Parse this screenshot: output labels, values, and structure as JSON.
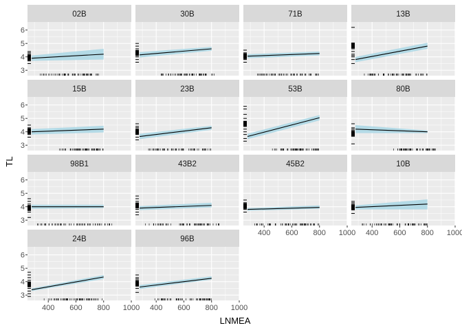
{
  "chart_data": {
    "type": "line",
    "facet_layout": "4 columns x 4 rows (row-wise)",
    "xlabel": "LNMEA",
    "ylabel": "TL",
    "xlim": [
      250,
      1000
    ],
    "ylim": [
      2.6,
      6.6
    ],
    "x_ticks": [
      400,
      600,
      800,
      1000
    ],
    "y_ticks": [
      3,
      4,
      5,
      6
    ],
    "grid": true,
    "colors": {
      "panel_bg": "#ebebeb",
      "grid": "#ffffff",
      "strip_bg": "#d9d9d9",
      "ribbon": "#add8e6",
      "line": "#000000",
      "rug": "#000000"
    },
    "panels": [
      {
        "label": "02B",
        "x": [
          280,
          800
        ],
        "y": [
          3.9,
          4.2
        ],
        "ribbon_lo": [
          3.7,
          3.8
        ],
        "ribbon_hi": [
          4.1,
          4.6
        ],
        "rug_x_range": [
          320,
          800
        ],
        "rug_y": [
          3.5,
          3.7,
          3.8,
          3.9,
          4.0,
          4.1,
          4.2,
          4.3,
          4.4
        ]
      },
      {
        "label": "30B",
        "x": [
          280,
          800
        ],
        "y": [
          4.15,
          4.6
        ],
        "ribbon_lo": [
          3.95,
          4.45
        ],
        "ribbon_hi": [
          4.35,
          4.75
        ],
        "rug_x_range": [
          420,
          820
        ],
        "rug_y": [
          3.6,
          3.8,
          4.0,
          4.1,
          4.2,
          4.3,
          4.4,
          4.6,
          4.8,
          5.0
        ]
      },
      {
        "label": "71B",
        "x": [
          280,
          800
        ],
        "y": [
          4.05,
          4.25
        ],
        "ribbon_lo": [
          3.9,
          4.1
        ],
        "ribbon_hi": [
          4.2,
          4.4
        ],
        "rug_x_range": [
          340,
          800
        ],
        "rug_y": [
          3.6,
          3.8,
          4.0,
          4.1,
          4.2,
          4.3,
          4.5
        ]
      },
      {
        "label": "13B",
        "x": [
          280,
          800
        ],
        "y": [
          3.8,
          4.8
        ],
        "ribbon_lo": [
          3.6,
          4.6
        ],
        "ribbon_hi": [
          4.0,
          5.05
        ],
        "rug_x_range": [
          340,
          800
        ],
        "rug_y": [
          3.5,
          3.8,
          4.0,
          4.1,
          4.2,
          4.4,
          4.6,
          6.2
        ]
      },
      {
        "label": "15B",
        "x": [
          280,
          800
        ],
        "y": [
          4.0,
          4.2
        ],
        "ribbon_lo": [
          3.8,
          3.95
        ],
        "ribbon_hi": [
          4.2,
          4.45
        ],
        "rug_x_range": [
          470,
          800
        ],
        "rug_y": [
          3.6,
          3.8,
          3.9,
          4.0,
          4.1,
          4.2,
          4.3,
          4.5
        ]
      },
      {
        "label": "23B",
        "x": [
          280,
          800
        ],
        "y": [
          3.65,
          4.3
        ],
        "ribbon_lo": [
          3.45,
          4.15
        ],
        "ribbon_hi": [
          3.85,
          4.45
        ],
        "rug_x_range": [
          340,
          800
        ],
        "rug_y": [
          3.4,
          3.6,
          3.8,
          4.0,
          4.1,
          4.2,
          4.3,
          4.4,
          4.6
        ]
      },
      {
        "label": "53B",
        "x": [
          280,
          800
        ],
        "y": [
          3.65,
          5.05
        ],
        "ribbon_lo": [
          3.45,
          4.85
        ],
        "ribbon_hi": [
          3.85,
          5.25
        ],
        "rug_x_range": [
          440,
          800
        ],
        "rug_y": [
          3.3,
          3.5,
          3.8,
          4.0,
          4.2,
          4.4,
          4.6,
          5.0,
          5.3,
          5.7,
          5.9
        ]
      },
      {
        "label": "80B",
        "x": [
          280,
          800
        ],
        "y": [
          4.2,
          4.0
        ],
        "ribbon_lo": [
          3.9,
          3.9
        ],
        "ribbon_hi": [
          4.5,
          4.1
        ],
        "rug_x_range": [
          550,
          860
        ],
        "rug_y": [
          3.1,
          3.7,
          3.9,
          4.0,
          4.1,
          4.2,
          4.3,
          4.6
        ]
      },
      {
        "label": "98B1",
        "x": [
          280,
          800
        ],
        "y": [
          4.0,
          4.0
        ],
        "ribbon_lo": [
          3.85,
          3.9
        ],
        "ribbon_hi": [
          4.15,
          4.15
        ],
        "rug_x_range": [
          320,
          860
        ],
        "rug_y": [
          3.2,
          3.6,
          3.8,
          3.9,
          4.0,
          4.1,
          4.2,
          4.4,
          4.6
        ]
      },
      {
        "label": "43B2",
        "x": [
          280,
          800
        ],
        "y": [
          3.9,
          4.1
        ],
        "ribbon_lo": [
          3.75,
          3.95
        ],
        "ribbon_hi": [
          4.05,
          4.3
        ],
        "rug_x_range": [
          320,
          860
        ],
        "rug_y": [
          3.4,
          3.6,
          3.8,
          3.9,
          4.0,
          4.1,
          4.2,
          4.4,
          4.6,
          4.8
        ]
      },
      {
        "label": "45B2",
        "x": [
          280,
          800
        ],
        "y": [
          3.8,
          3.95
        ],
        "ribbon_lo": [
          3.7,
          3.85
        ],
        "ribbon_hi": [
          3.9,
          4.1
        ],
        "rug_x_range": [
          320,
          800
        ],
        "rug_y": [
          3.6,
          3.8,
          3.9,
          4.0,
          4.1,
          4.2,
          4.3,
          4.5
        ]
      },
      {
        "label": "10B",
        "x": [
          280,
          800
        ],
        "y": [
          3.95,
          4.2
        ],
        "ribbon_lo": [
          3.8,
          3.8
        ],
        "ribbon_hi": [
          4.1,
          4.55
        ],
        "rug_x_range": [
          320,
          800
        ],
        "rug_y": [
          3.5,
          3.8,
          3.9,
          4.0,
          4.1,
          4.2,
          4.3,
          4.4
        ]
      },
      {
        "label": "24B",
        "x": [
          280,
          800
        ],
        "y": [
          3.4,
          4.35
        ],
        "ribbon_lo": [
          3.3,
          4.2
        ],
        "ribbon_hi": [
          3.5,
          4.5
        ],
        "rug_x_range": [
          360,
          800
        ],
        "rug_y": [
          2.9,
          3.1,
          3.3,
          3.5,
          3.7,
          3.9,
          4.1,
          4.3,
          4.5,
          4.7
        ]
      },
      {
        "label": "96B",
        "x": [
          280,
          800
        ],
        "y": [
          3.6,
          4.25
        ],
        "ribbon_lo": [
          3.45,
          4.15
        ],
        "ribbon_hi": [
          3.75,
          4.4
        ],
        "rug_x_range": [
          370,
          800
        ],
        "rug_y": [
          3.2,
          3.5,
          3.7,
          3.8,
          3.9,
          4.0,
          4.1,
          4.2,
          4.3,
          4.5
        ]
      }
    ]
  }
}
